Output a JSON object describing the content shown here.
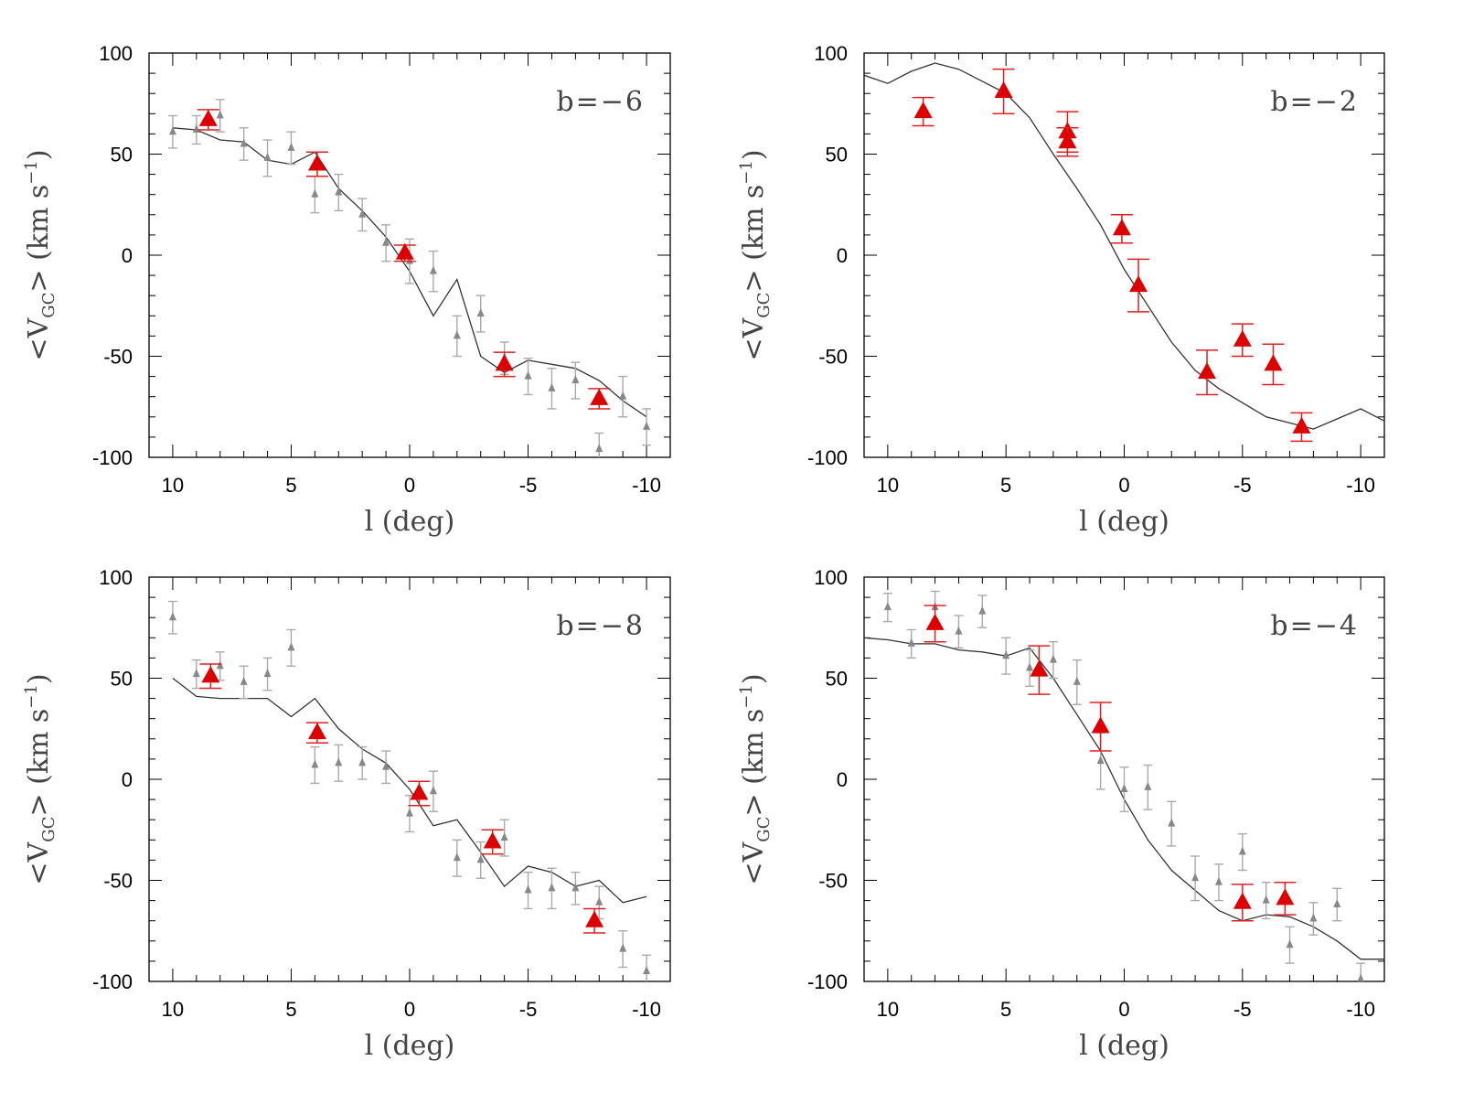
{
  "colors": {
    "model_line": "#333333",
    "gray_points": "#888888",
    "gray_errorbars": "#aaaaaa",
    "red_points": "#dd0000",
    "red_errorbars": "#e02020"
  },
  "chart_data": [
    {
      "type": "scatter",
      "panel": "b=-6",
      "label": "b=−6",
      "xlabel": "l (deg)",
      "ylabel_prefix": "<V",
      "ylabel_sub": "GC",
      "ylabel_suffix": "> (km s",
      "ylabel_sup": "−1",
      "ylabel_close": ")",
      "xlim": [
        11,
        -11
      ],
      "ylim": [
        -100,
        100
      ],
      "xticks": [
        10,
        5,
        0,
        -5,
        -10
      ],
      "xtick_labels": [
        "10",
        "5",
        "0",
        "-5",
        "-10"
      ],
      "yticks": [
        100,
        50,
        0,
        -50,
        -100
      ],
      "ytick_labels": [
        "100",
        "50",
        "0",
        "-50",
        "-100"
      ],
      "model": {
        "x": [
          10,
          9,
          8,
          7,
          6,
          5,
          4,
          3,
          2,
          1,
          0,
          -1,
          -2,
          -3,
          -4,
          -5,
          -6,
          -7,
          -8,
          -9,
          -10
        ],
        "y": [
          63,
          62,
          57,
          56,
          47,
          45,
          51,
          33,
          22,
          9,
          -8,
          -30,
          -12,
          -50,
          -58,
          -52,
          -54,
          -56,
          -62,
          -72,
          -80
        ]
      },
      "gray": [
        {
          "x": 10,
          "y": 61,
          "e": 8
        },
        {
          "x": 9,
          "y": 62,
          "e": 7
        },
        {
          "x": 8,
          "y": 69,
          "e": 8
        },
        {
          "x": 7,
          "y": 55,
          "e": 8
        },
        {
          "x": 6,
          "y": 48,
          "e": 9
        },
        {
          "x": 5,
          "y": 53,
          "e": 8
        },
        {
          "x": 4,
          "y": 30,
          "e": 9
        },
        {
          "x": 3,
          "y": 31,
          "e": 9
        },
        {
          "x": 2,
          "y": 20,
          "e": 8
        },
        {
          "x": 1,
          "y": 6,
          "e": 9
        },
        {
          "x": 0,
          "y": -3,
          "e": 11
        },
        {
          "x": -1,
          "y": -8,
          "e": 10
        },
        {
          "x": -2,
          "y": -40,
          "e": 10
        },
        {
          "x": -3,
          "y": -29,
          "e": 9
        },
        {
          "x": -4,
          "y": -51,
          "e": 8
        },
        {
          "x": -5,
          "y": -60,
          "e": 9
        },
        {
          "x": -6,
          "y": -66,
          "e": 10
        },
        {
          "x": -7,
          "y": -62,
          "e": 9
        },
        {
          "x": -8,
          "y": -96,
          "e": 8
        },
        {
          "x": -9,
          "y": -70,
          "e": 10
        },
        {
          "x": -10,
          "y": -85,
          "e": 9
        }
      ],
      "red": [
        {
          "x": 8.5,
          "y": 67,
          "e": 5
        },
        {
          "x": 3.9,
          "y": 45,
          "e": 6
        },
        {
          "x": 0.2,
          "y": 1,
          "e": 4
        },
        {
          "x": -4,
          "y": -54,
          "e": 6
        },
        {
          "x": -8,
          "y": -71,
          "e": 5
        }
      ]
    },
    {
      "type": "scatter",
      "panel": "b=-2",
      "label": "b=−2",
      "xlabel": "l (deg)",
      "ylabel_prefix": "<V",
      "ylabel_sub": "GC",
      "ylabel_suffix": "> (km s",
      "ylabel_sup": "−1",
      "ylabel_close": ")",
      "xlim": [
        11,
        -11
      ],
      "ylim": [
        -100,
        100
      ],
      "xticks": [
        10,
        5,
        0,
        -5,
        -10
      ],
      "xtick_labels": [
        "10",
        "5",
        "0",
        "-5",
        "-10"
      ],
      "yticks": [
        100,
        50,
        0,
        -50,
        -100
      ],
      "ytick_labels": [
        "100",
        "50",
        "0",
        "-50",
        "-100"
      ],
      "model": {
        "x": [
          11,
          10,
          9,
          8,
          7,
          6,
          5,
          4,
          3,
          2,
          1,
          0,
          -1,
          -2,
          -3,
          -4,
          -5,
          -6,
          -7,
          -8,
          -9,
          -10,
          -11
        ],
        "y": [
          89,
          85,
          91,
          95,
          92,
          86,
          80,
          68,
          50,
          33,
          15,
          -7,
          -25,
          -43,
          -57,
          -66,
          -73,
          -80,
          -83,
          -86,
          -81,
          -76,
          -82
        ]
      },
      "gray": [],
      "red": [
        {
          "x": 8.5,
          "y": 71,
          "e": 7
        },
        {
          "x": 5.1,
          "y": 81,
          "e": 11
        },
        {
          "x": 2.4,
          "y": 61,
          "e": 10
        },
        {
          "x": 2.4,
          "y": 56,
          "e": 7
        },
        {
          "x": 0.1,
          "y": 13,
          "e": 7
        },
        {
          "x": -0.6,
          "y": -15,
          "e": 13
        },
        {
          "x": -3.5,
          "y": -58,
          "e": 11
        },
        {
          "x": -5,
          "y": -42,
          "e": 8
        },
        {
          "x": -6.3,
          "y": -54,
          "e": 10
        },
        {
          "x": -7.5,
          "y": -85,
          "e": 7
        }
      ]
    },
    {
      "type": "scatter",
      "panel": "b=-8",
      "label": "b=−8",
      "xlabel": "l (deg)",
      "ylabel_prefix": "<V",
      "ylabel_sub": "GC",
      "ylabel_suffix": "> (km s",
      "ylabel_sup": "−1",
      "ylabel_close": ")",
      "xlim": [
        11,
        -11
      ],
      "ylim": [
        -100,
        100
      ],
      "xticks": [
        10,
        5,
        0,
        -5,
        -10
      ],
      "xtick_labels": [
        "10",
        "5",
        "0",
        "-5",
        "-10"
      ],
      "yticks": [
        100,
        50,
        0,
        -50,
        -100
      ],
      "ytick_labels": [
        "100",
        "50",
        "0",
        "-50",
        "-100"
      ],
      "model": {
        "x": [
          10,
          9,
          8,
          7,
          6,
          5,
          4,
          3,
          2,
          1,
          0,
          -1,
          -2,
          -3,
          -4,
          -5,
          -6,
          -7,
          -8,
          -9,
          -10
        ],
        "y": [
          50,
          41,
          40,
          40,
          40,
          31,
          40,
          25,
          15,
          8,
          -5,
          -23,
          -20,
          -36,
          -53,
          -43,
          -46,
          -53,
          -50,
          -61,
          -58
        ]
      },
      "gray": [
        {
          "x": 10,
          "y": 80,
          "e": 8
        },
        {
          "x": 9,
          "y": 52,
          "e": 7
        },
        {
          "x": 8,
          "y": 56,
          "e": 7
        },
        {
          "x": 7,
          "y": 48,
          "e": 8
        },
        {
          "x": 6,
          "y": 52,
          "e": 8
        },
        {
          "x": 5,
          "y": 65,
          "e": 9
        },
        {
          "x": 4,
          "y": 7,
          "e": 9
        },
        {
          "x": 3,
          "y": 8,
          "e": 9
        },
        {
          "x": 2,
          "y": 8,
          "e": 8
        },
        {
          "x": 1,
          "y": 6,
          "e": 8
        },
        {
          "x": 0,
          "y": -17,
          "e": 9
        },
        {
          "x": -1,
          "y": -6,
          "e": 10
        },
        {
          "x": -2,
          "y": -39,
          "e": 9
        },
        {
          "x": -3,
          "y": -40,
          "e": 9
        },
        {
          "x": -4,
          "y": -29,
          "e": 9
        },
        {
          "x": -5,
          "y": -55,
          "e": 9
        },
        {
          "x": -6,
          "y": -54,
          "e": 10
        },
        {
          "x": -7,
          "y": -54,
          "e": 8
        },
        {
          "x": -8,
          "y": -61,
          "e": 8
        },
        {
          "x": -9,
          "y": -84,
          "e": 9
        },
        {
          "x": -10,
          "y": -95,
          "e": 8
        }
      ],
      "red": [
        {
          "x": 8.4,
          "y": 51,
          "e": 6
        },
        {
          "x": 3.9,
          "y": 23,
          "e": 5
        },
        {
          "x": -0.4,
          "y": -7,
          "e": 6
        },
        {
          "x": -3.5,
          "y": -31,
          "e": 6
        },
        {
          "x": -7.8,
          "y": -70,
          "e": 6
        }
      ]
    },
    {
      "type": "scatter",
      "panel": "b=-4",
      "label": "b=−4",
      "xlabel": "l (deg)",
      "ylabel_prefix": "<V",
      "ylabel_sub": "GC",
      "ylabel_suffix": "> (km s",
      "ylabel_sup": "−1",
      "ylabel_close": ")",
      "xlim": [
        11,
        -11
      ],
      "ylim": [
        -100,
        100
      ],
      "xticks": [
        10,
        5,
        0,
        -5,
        -10
      ],
      "xtick_labels": [
        "10",
        "5",
        "0",
        "-5",
        "-10"
      ],
      "yticks": [
        100,
        50,
        0,
        -50,
        -100
      ],
      "ytick_labels": [
        "100",
        "50",
        "0",
        "-50",
        "-100"
      ],
      "model": {
        "x": [
          11,
          10,
          9,
          8,
          7,
          6,
          5,
          4,
          3,
          2,
          1,
          0,
          -1,
          -2,
          -3,
          -4,
          -5,
          -6,
          -7,
          -8,
          -9,
          -10,
          -11
        ],
        "y": [
          70,
          69,
          67,
          67,
          64,
          63,
          61,
          65,
          50,
          32,
          14,
          -10,
          -30,
          -45,
          -55,
          -65,
          -70,
          -67,
          -68,
          -73,
          -80,
          -89,
          -89
        ]
      },
      "gray": [
        {
          "x": 10,
          "y": 85,
          "e": 7
        },
        {
          "x": 9,
          "y": 67,
          "e": 7
        },
        {
          "x": 8,
          "y": 85,
          "e": 8
        },
        {
          "x": 7,
          "y": 73,
          "e": 8
        },
        {
          "x": 6,
          "y": 83,
          "e": 8
        },
        {
          "x": 5,
          "y": 61,
          "e": 9
        },
        {
          "x": 4,
          "y": 55,
          "e": 9
        },
        {
          "x": 3,
          "y": 59,
          "e": 9
        },
        {
          "x": 2,
          "y": 48,
          "e": 11
        },
        {
          "x": 1,
          "y": 9,
          "e": 14
        },
        {
          "x": 0,
          "y": -5,
          "e": 11
        },
        {
          "x": -1,
          "y": -4,
          "e": 11
        },
        {
          "x": -2,
          "y": -22,
          "e": 11
        },
        {
          "x": -3,
          "y": -49,
          "e": 11
        },
        {
          "x": -4,
          "y": -51,
          "e": 9
        },
        {
          "x": -5,
          "y": -36,
          "e": 9
        },
        {
          "x": -6,
          "y": -60,
          "e": 9
        },
        {
          "x": -7,
          "y": -82,
          "e": 9
        },
        {
          "x": -8,
          "y": -69,
          "e": 8
        },
        {
          "x": -9,
          "y": -62,
          "e": 8
        },
        {
          "x": -10,
          "y": -99,
          "e": 8
        }
      ],
      "red": [
        {
          "x": 8,
          "y": 77,
          "e": 9
        },
        {
          "x": 3.6,
          "y": 54,
          "e": 12
        },
        {
          "x": 1,
          "y": 26,
          "e": 12
        },
        {
          "x": -5,
          "y": -61,
          "e": 9
        },
        {
          "x": -6.8,
          "y": -59,
          "e": 8
        }
      ]
    }
  ]
}
